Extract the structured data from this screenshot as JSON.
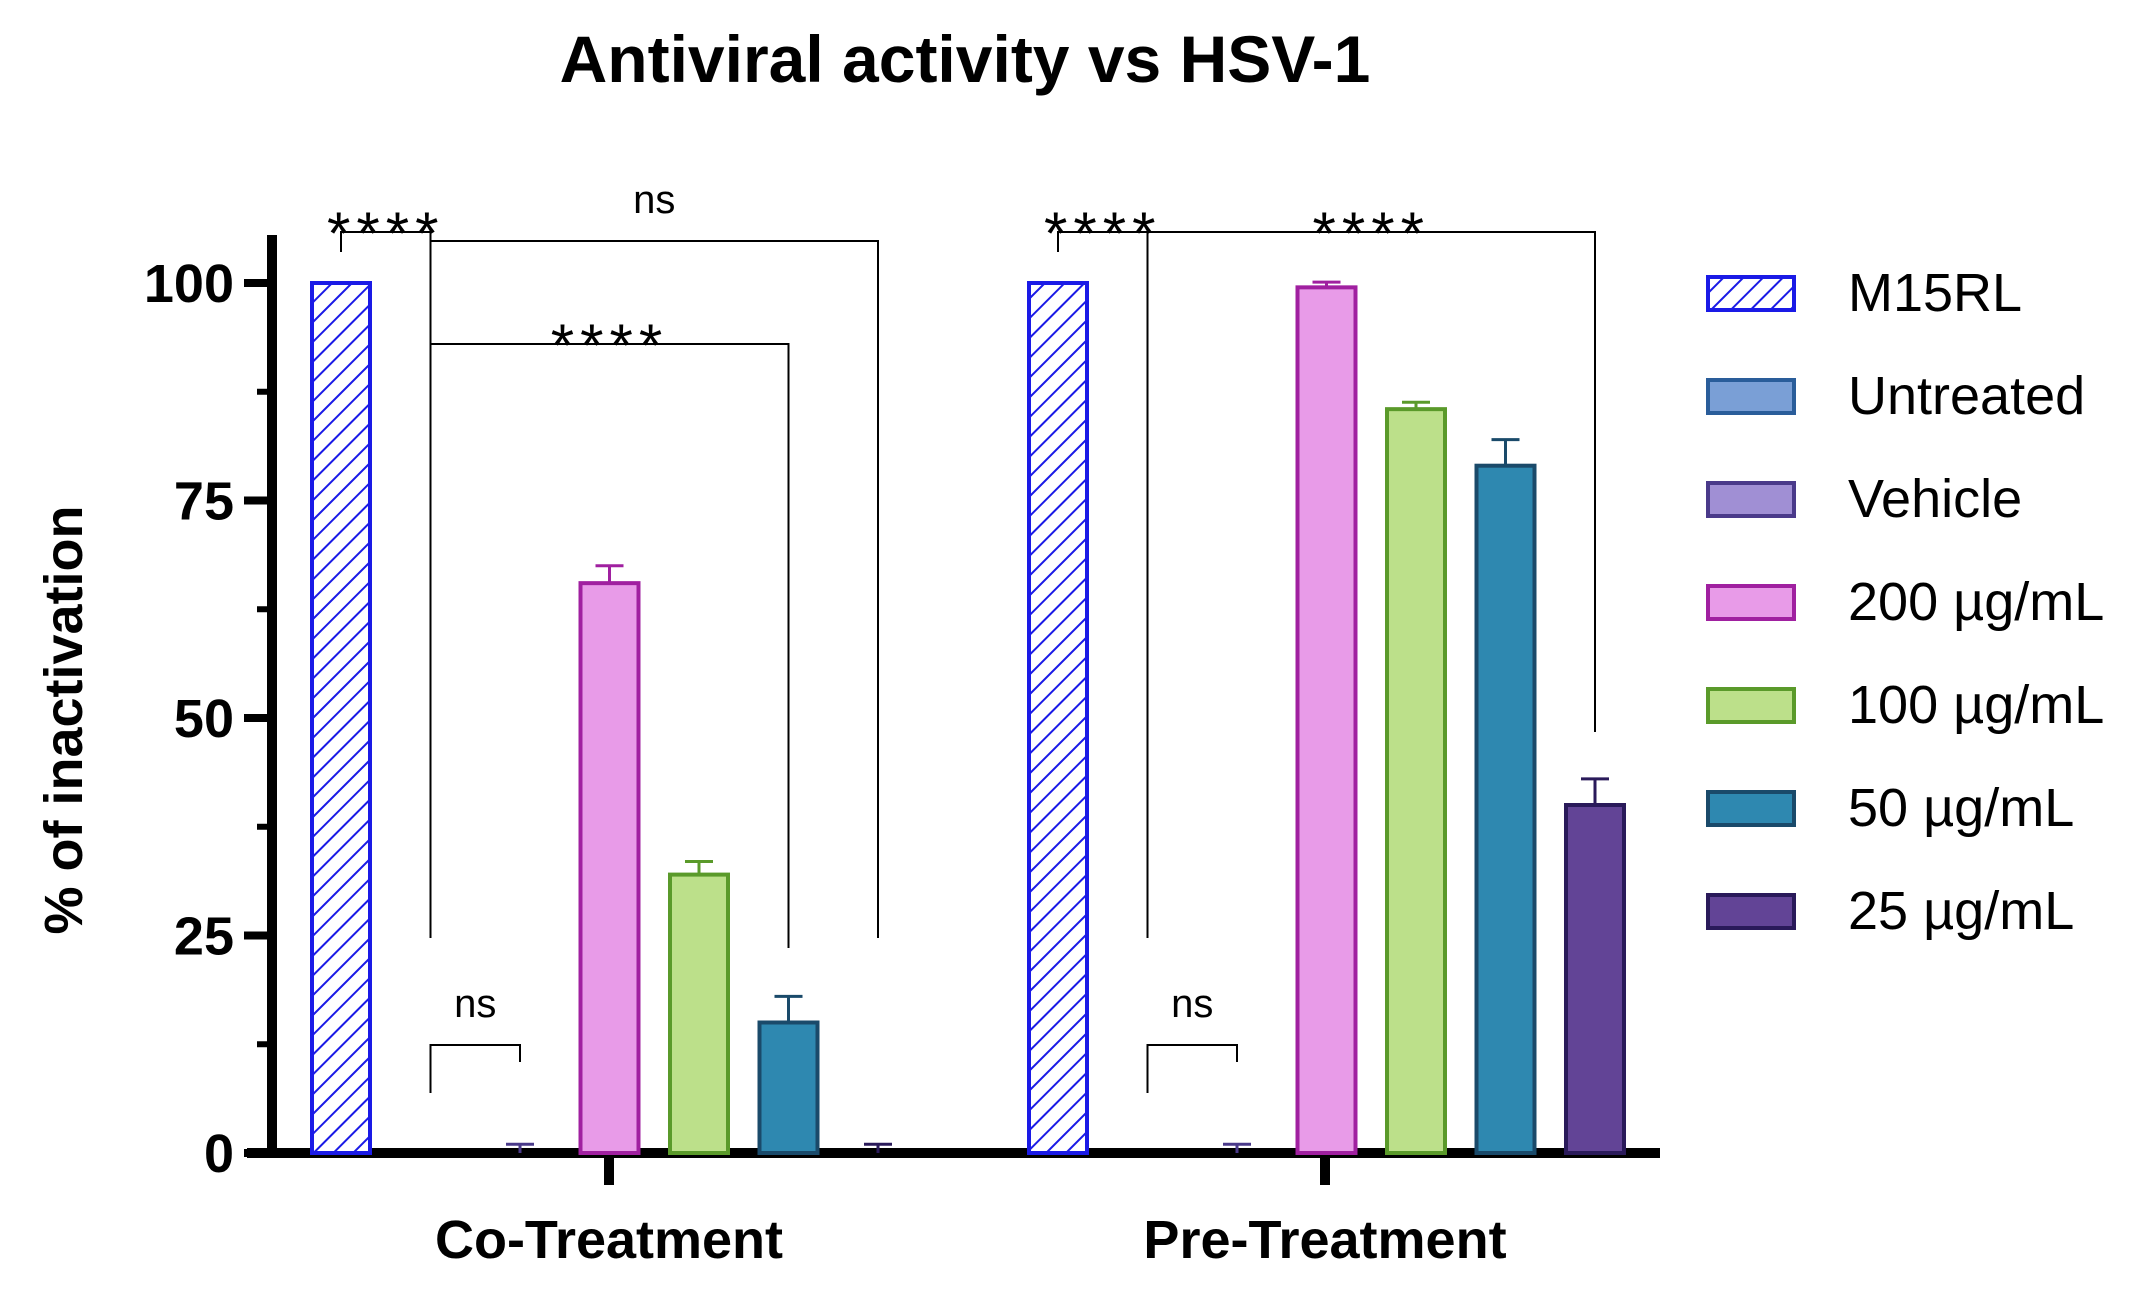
{
  "chart_data": {
    "type": "bar",
    "title": "Antiviral activity vs HSV-1",
    "ylabel": "% of inactivation",
    "xlabel": "",
    "ylim": [
      0,
      100
    ],
    "yticks": [
      0,
      25,
      50,
      75,
      100
    ],
    "categories": [
      "Co-Treatment",
      "Pre-Treatment"
    ],
    "legend_position": "right",
    "series": [
      {
        "name": "M15RL",
        "values": [
          100,
          100
        ],
        "errors": [
          0,
          0
        ],
        "fill": "hatch",
        "stroke": "#1a1ae6",
        "color": "#ffffff"
      },
      {
        "name": "Untreated",
        "values": [
          0,
          0
        ],
        "errors": [
          0,
          0
        ],
        "fill": "solid",
        "stroke": "#2a5d9a",
        "color": "#7a9fd6"
      },
      {
        "name": "Vehicle",
        "values": [
          0,
          0
        ],
        "errors": [
          1,
          1
        ],
        "fill": "solid",
        "stroke": "#4a3a8a",
        "color": "#a08fd4"
      },
      {
        "name": "200 µg/mL",
        "values": [
          65.5,
          99.5
        ],
        "errors": [
          2,
          0.6
        ],
        "fill": "solid",
        "stroke": "#a020a0",
        "color": "#e89be8"
      },
      {
        "name": "100 µg/mL",
        "values": [
          32,
          85.5
        ],
        "errors": [
          1.5,
          0.8
        ],
        "fill": "solid",
        "stroke": "#5a9a2a",
        "color": "#bce08a"
      },
      {
        "name": "50 µg/mL",
        "values": [
          15,
          79
        ],
        "errors": [
          3,
          3
        ],
        "fill": "solid",
        "stroke": "#1a4a6a",
        "color": "#2e88b0"
      },
      {
        "name": "25 µg/mL",
        "values": [
          0,
          40
        ],
        "errors": [
          1,
          3
        ],
        "fill": "solid",
        "stroke": "#2a1a5a",
        "color": "#624496"
      }
    ],
    "significance": [
      {
        "group": 0,
        "from": 0,
        "to": 1,
        "label": "****"
      },
      {
        "group": 0,
        "from": 1,
        "to": 6,
        "label": "ns"
      },
      {
        "group": 0,
        "from": 1,
        "to": 5,
        "label": "****"
      },
      {
        "group": 0,
        "from": 1,
        "to": 2,
        "label": "ns"
      },
      {
        "group": 1,
        "from": 0,
        "to": 1,
        "label": "****"
      },
      {
        "group": 1,
        "from": 1,
        "to": 6,
        "label": "****"
      },
      {
        "group": 1,
        "from": 1,
        "to": 2,
        "label": "ns"
      }
    ]
  }
}
